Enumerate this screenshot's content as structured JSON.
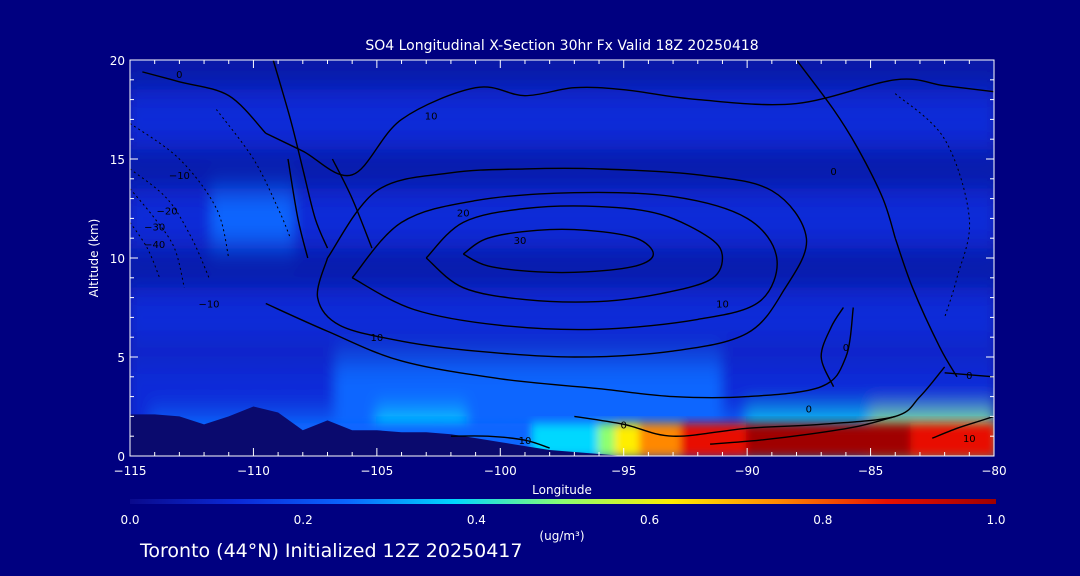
{
  "chart_data": {
    "type": "heatmap",
    "title": "SO4 Longitudinal X-Section 30hr  Fx Valid 18Z 20250418",
    "xlabel": "Longitude",
    "ylabel": "Altitude (km)",
    "xlim": [
      -115,
      -80
    ],
    "ylim": [
      0,
      20
    ],
    "x_ticks": [
      -115,
      -110,
      -105,
      -100,
      -95,
      -90,
      -85,
      -80
    ],
    "x_tick_labels": [
      "−115",
      "−110",
      "−105",
      "−100",
      "−95",
      "−90",
      "−85",
      "−80"
    ],
    "y_ticks": [
      0,
      5,
      10,
      15,
      20
    ],
    "y_tick_labels": [
      "0",
      "5",
      "10",
      "15",
      "20"
    ],
    "colorbar": {
      "label": "(ug/m³)",
      "range": [
        0.0,
        1.0
      ],
      "ticks": [
        0.0,
        0.2,
        0.4,
        0.6,
        0.8,
        1.0
      ],
      "tick_labels": [
        "0.0",
        "0.2",
        "0.4",
        "0.6",
        "0.8",
        "1.0"
      ],
      "colors": [
        "#0a0a8c",
        "#0b2ad8",
        "#0a66ff",
        "#00d8ff",
        "#8cff70",
        "#ffee00",
        "#ff8800",
        "#e81000",
        "#a00000"
      ]
    },
    "grid": false,
    "concentration_bands": [
      {
        "alt": 0.8,
        "lon": [
          -115,
          -100,
          -96,
          -94,
          -90,
          -86,
          -82,
          -80
        ],
        "values": [
          0.2,
          0.26,
          0.45,
          0.72,
          0.95,
          1.0,
          0.9,
          0.85
        ]
      },
      {
        "alt": 1.6,
        "lon": [
          -115,
          -110,
          -104,
          -100,
          -96,
          -90,
          -84,
          -80
        ],
        "values": [
          0.18,
          0.25,
          0.33,
          0.3,
          0.28,
          0.3,
          0.45,
          0.55
        ]
      },
      {
        "alt": 3.5,
        "lon": [
          -115,
          -108,
          -100,
          -96,
          -90,
          -85,
          -80
        ],
        "values": [
          0.14,
          0.17,
          0.3,
          0.24,
          0.18,
          0.17,
          0.18
        ]
      },
      {
        "alt": 7.0,
        "lon": [
          -115,
          -105,
          -95,
          -85,
          -80
        ],
        "values": [
          0.12,
          0.14,
          0.13,
          0.12,
          0.11
        ]
      },
      {
        "alt": 12.0,
        "lon": [
          -115,
          -110,
          -100,
          -90,
          -80
        ],
        "values": [
          0.16,
          0.2,
          0.14,
          0.13,
          0.12
        ]
      },
      {
        "alt": 17.0,
        "lon": [
          -115,
          -100,
          -80
        ],
        "values": [
          0.09,
          0.09,
          0.08
        ]
      }
    ],
    "terrain": {
      "lon": [
        -115,
        -114,
        -113,
        -112,
        -111,
        -110,
        -109,
        -108,
        -107,
        -106,
        -105,
        -104,
        -103,
        -102,
        -101,
        -100,
        -99,
        -98,
        -97,
        -96,
        -95
      ],
      "alt": [
        2.1,
        2.1,
        2.0,
        1.6,
        2.0,
        2.5,
        2.2,
        1.3,
        1.8,
        1.3,
        1.3,
        1.2,
        1.2,
        1.1,
        0.9,
        0.7,
        0.5,
        0.3,
        0.2,
        0.1,
        0.0
      ]
    },
    "contours": [
      {
        "level": "30",
        "lon": [
          -101.5,
          -100.5,
          -98.5,
          -96.5,
          -94.5,
          -93.8,
          -94.5,
          -96.5,
          -98.5,
          -100.5,
          -101.5
        ],
        "alt": [
          10.2,
          11.0,
          11.4,
          11.4,
          11.0,
          10.2,
          9.6,
          9.3,
          9.3,
          9.6,
          10.2
        ]
      },
      {
        "level": "",
        "lon": [
          -103,
          -101.5,
          -99,
          -96,
          -93.5,
          -91.5,
          -91,
          -91.5,
          -93.5,
          -96,
          -99,
          -101.5,
          -103
        ],
        "alt": [
          10.0,
          11.8,
          12.5,
          12.6,
          12.2,
          11.0,
          10.0,
          8.9,
          8.2,
          7.8,
          7.9,
          8.5,
          10.0
        ]
      },
      {
        "level": "20",
        "lon": [
          -106,
          -104,
          -101,
          -97,
          -93,
          -90,
          -88.8,
          -89.5,
          -92,
          -96,
          -100,
          -103.5,
          -106
        ],
        "alt": [
          9.0,
          11.8,
          12.9,
          13.3,
          13.1,
          12.0,
          10.0,
          7.8,
          6.9,
          6.4,
          6.6,
          7.4,
          9.0
        ]
      },
      {
        "level": "10",
        "lon": [
          -107,
          -105,
          -102,
          -99,
          -96,
          -92,
          -89,
          -87.6,
          -88.5,
          -90,
          -93,
          -97,
          -101,
          -104,
          -106.5,
          -107.4,
          -107
        ],
        "alt": [
          10.0,
          13.4,
          14.3,
          14.5,
          14.5,
          14.2,
          13.4,
          11.0,
          8.4,
          6.2,
          5.3,
          5.0,
          5.3,
          5.8,
          6.6,
          8.0,
          10.0
        ]
      },
      {
        "level": "10",
        "lon": [
          -109.5,
          -108,
          -106,
          -104,
          -101,
          -99,
          -97,
          -95,
          -92,
          -88,
          -84,
          -82,
          -80
        ],
        "alt": [
          16.3,
          15.4,
          14.2,
          17.0,
          18.6,
          18.2,
          18.6,
          18.5,
          18.0,
          17.8,
          19.0,
          18.7,
          18.4
        ]
      },
      {
        "level": "0",
        "lon": [
          -114.5,
          -113,
          -111,
          -109.5
        ],
        "alt": [
          19.4,
          18.9,
          18.2,
          16.3
        ]
      },
      {
        "level": "0",
        "lon": [
          -109.2,
          -108.5,
          -108,
          -107.5,
          -107
        ],
        "alt": [
          20.0,
          17.0,
          14.5,
          12.0,
          10.5
        ]
      },
      {
        "level": "",
        "lon": [
          -106.8,
          -106,
          -105.2
        ],
        "alt": [
          15.0,
          13.0,
          10.5
        ]
      },
      {
        "level": "",
        "lon": [
          -108.6,
          -108.2,
          -107.8
        ],
        "alt": [
          15.0,
          12.0,
          10.0
        ]
      },
      {
        "level": "10",
        "lon": [
          -109.5,
          -107,
          -104,
          -100,
          -96,
          -93,
          -90,
          -87,
          -86,
          -85.7
        ],
        "alt": [
          7.7,
          6.3,
          4.8,
          3.9,
          3.4,
          3.0,
          3.0,
          3.5,
          5.0,
          7.5
        ]
      },
      {
        "level": "0",
        "lon": [
          -97,
          -95,
          -93,
          -90,
          -87,
          -84,
          -83,
          -82
        ],
        "alt": [
          2.0,
          1.6,
          1.0,
          1.4,
          1.6,
          2.0,
          3.0,
          4.5
        ]
      },
      {
        "level": "0",
        "lon": [
          -88,
          -86.5,
          -85.5,
          -84.5,
          -84
        ],
        "alt": [
          20.0,
          17.5,
          15.5,
          13.0,
          11.0
        ]
      },
      {
        "level": "",
        "lon": [
          -84,
          -83.3,
          -82.2,
          -81.5
        ],
        "alt": [
          11.0,
          8.5,
          5.5,
          4.0
        ]
      },
      {
        "level": "",
        "lon": [
          -86.5,
          -87,
          -86.6,
          -86.1
        ],
        "alt": [
          3.5,
          5.0,
          6.5,
          7.5
        ]
      },
      {
        "level": "0",
        "lon": [
          -82,
          -81,
          -80
        ],
        "alt": [
          4.2,
          4.1,
          4.0
        ]
      },
      {
        "level": "",
        "lon": [
          -91.5,
          -89.5,
          -87.5,
          -85.5,
          -84
        ],
        "alt": [
          0.6,
          0.8,
          1.1,
          1.5,
          2.0
        ]
      },
      {
        "level": "10",
        "lon": [
          -82.5,
          -81.5,
          -80.5,
          -80
        ],
        "alt": [
          0.9,
          1.4,
          1.8,
          2.0
        ]
      },
      {
        "level": "10",
        "lon": [
          -98,
          -99,
          -100.5,
          -102
        ],
        "alt": [
          0.4,
          0.8,
          1.0,
          1.0
        ]
      }
    ],
    "dashed_contours": [
      {
        "level": "−10",
        "lon": [
          -115,
          -113,
          -111.5,
          -111
        ],
        "alt": [
          16.8,
          15.0,
          12.5,
          10.0
        ]
      },
      {
        "level": "−20",
        "lon": [
          -115,
          -113.5,
          -112.5,
          -111.8
        ],
        "alt": [
          14.5,
          13.0,
          11.0,
          9.0
        ]
      },
      {
        "level": "−30",
        "lon": [
          -115,
          -114,
          -113.2,
          -112.8
        ],
        "alt": [
          13.5,
          12.0,
          10.5,
          8.5
        ]
      },
      {
        "level": "−40",
        "lon": [
          -115,
          -114.3,
          -113.8
        ],
        "alt": [
          11.8,
          10.5,
          9.0
        ]
      },
      {
        "level": "",
        "lon": [
          -111.5,
          -110,
          -109,
          -108.5
        ],
        "alt": [
          17.5,
          15.0,
          12.5,
          11.0
        ]
      },
      {
        "level": "",
        "lon": [
          -84,
          -82,
          -81,
          -81.5,
          -82
        ],
        "alt": [
          18.3,
          16.0,
          12.0,
          9.0,
          7.0
        ]
      }
    ],
    "contour_labels": [
      {
        "text": "−10",
        "lon": -113.0,
        "alt": 14.2
      },
      {
        "text": "−20",
        "lon": -113.5,
        "alt": 12.4
      },
      {
        "text": "−30",
        "lon": -114.0,
        "alt": 11.6
      },
      {
        "text": "−40",
        "lon": -114.0,
        "alt": 10.7
      },
      {
        "text": "−10",
        "lon": -111.8,
        "alt": 7.7
      },
      {
        "text": "0",
        "lon": -113.0,
        "alt": 19.3
      },
      {
        "text": "10",
        "lon": -102.8,
        "alt": 17.2
      },
      {
        "text": "20",
        "lon": -101.5,
        "alt": 12.3
      },
      {
        "text": "30",
        "lon": -99.2,
        "alt": 10.9
      },
      {
        "text": "10",
        "lon": -91.0,
        "alt": 7.7
      },
      {
        "text": "10",
        "lon": -105.0,
        "alt": 6.0
      },
      {
        "text": "0",
        "lon": -86.5,
        "alt": 14.4
      },
      {
        "text": "0",
        "lon": -86.0,
        "alt": 5.5
      },
      {
        "text": "0",
        "lon": -87.5,
        "alt": 2.4
      },
      {
        "text": "0",
        "lon": -81.0,
        "alt": 4.1
      },
      {
        "text": "0",
        "lon": -95.0,
        "alt": 1.6
      },
      {
        "text": "10",
        "lon": -99.0,
        "alt": 0.8
      },
      {
        "text": "10",
        "lon": -81.0,
        "alt": 0.9
      }
    ]
  },
  "footer": {
    "text": "Toronto (44°N) Initialized 12Z 20250417"
  }
}
